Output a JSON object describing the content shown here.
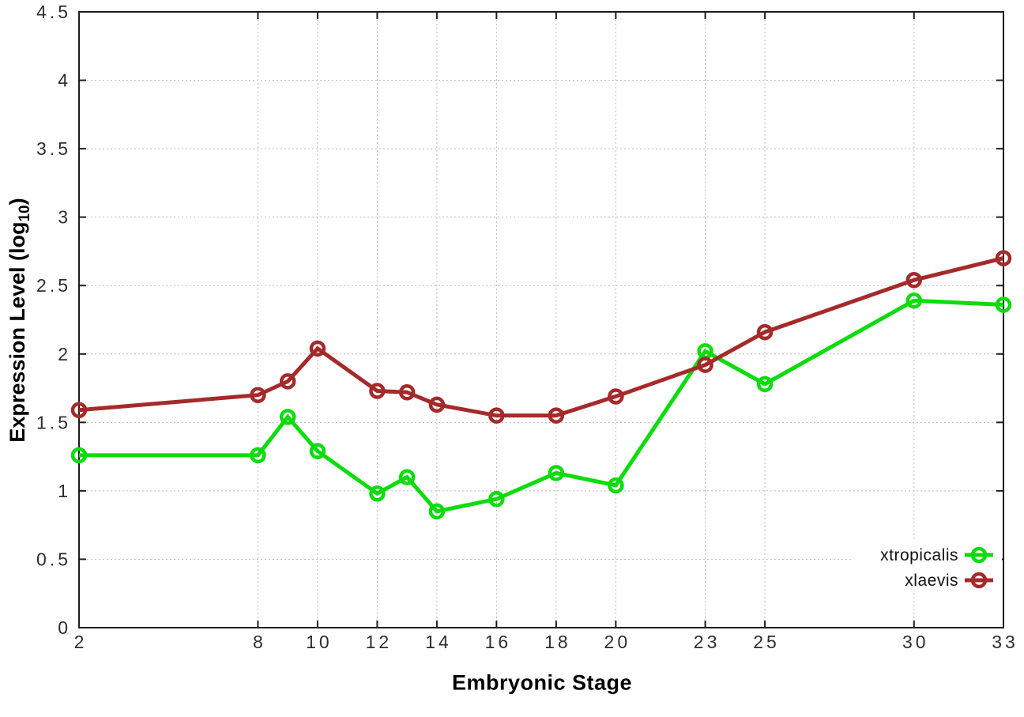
{
  "chart_data": {
    "type": "line",
    "title": "",
    "xlabel": "Embryonic Stage",
    "ylabel": "Expression Level (log10)",
    "ylabel_parts": {
      "prefix": "Expression Level (log",
      "sub": "10",
      "suffix": ")"
    },
    "xlim": [
      2,
      33
    ],
    "ylim": [
      0,
      4.5
    ],
    "grid": true,
    "legend_position": "bottom-right",
    "x": [
      2,
      8,
      9,
      10,
      12,
      13,
      14,
      16,
      18,
      20,
      23,
      25,
      30,
      33
    ],
    "xtick_values": [
      2,
      8,
      10,
      12,
      14,
      16,
      18,
      20,
      23,
      25,
      30,
      33
    ],
    "xtick_labels": [
      "2",
      "8",
      "10",
      "12",
      "14",
      "16",
      "18",
      "20",
      "23",
      "25",
      "30",
      "33"
    ],
    "ytick_values": [
      0,
      0.5,
      1,
      1.5,
      2,
      2.5,
      3,
      3.5,
      4,
      4.5
    ],
    "ytick_labels": [
      "0",
      "0.5",
      "1",
      "1.5",
      "2",
      "2.5",
      "3",
      "3.5",
      "4",
      "4.5"
    ],
    "series": [
      {
        "name": "xtropicalis",
        "color": "#0cdc0c",
        "values": [
          1.26,
          1.26,
          1.54,
          1.29,
          0.98,
          1.1,
          0.85,
          0.94,
          1.13,
          1.04,
          2.02,
          1.78,
          2.39,
          2.36
        ]
      },
      {
        "name": "xlaevis",
        "color": "#a52a2a",
        "values": [
          1.59,
          1.7,
          1.8,
          2.04,
          1.73,
          1.72,
          1.63,
          1.55,
          1.55,
          1.69,
          1.92,
          2.16,
          2.54,
          2.7
        ]
      }
    ]
  }
}
